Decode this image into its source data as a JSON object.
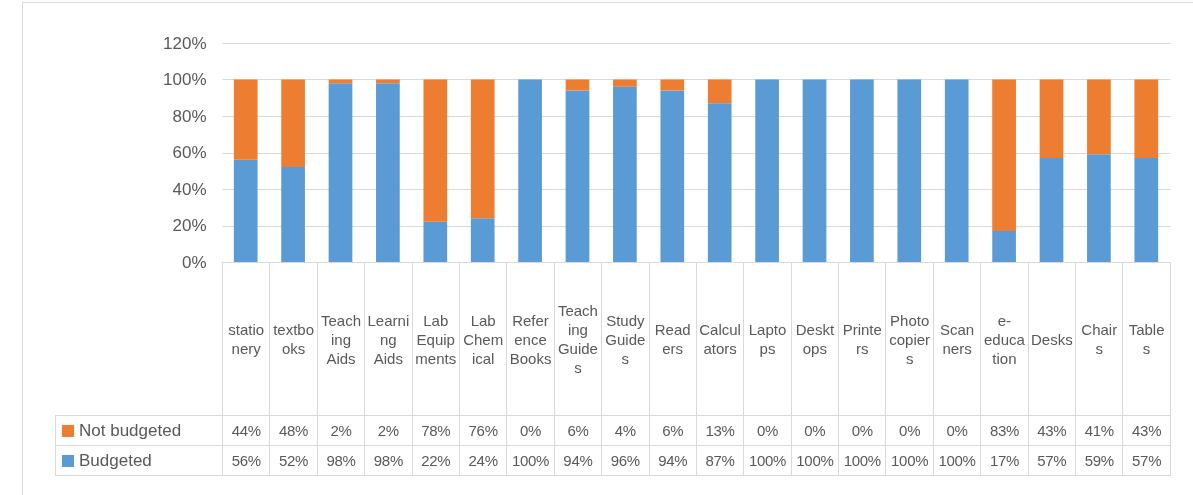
{
  "chart_data": {
    "type": "bar",
    "stacked": true,
    "categories": [
      "stationery",
      "textbooks",
      "Teaching Aids",
      "Learning Aids",
      "Lab Equipments",
      "Lab Chemical",
      "Reference Books",
      "Teaching Guides",
      "Study Guides",
      "Readers",
      "Calculators",
      "Laptops",
      "Desktops",
      "Printers",
      "Photocopiers",
      "Scanners",
      "e-education",
      "Desks",
      "Chairs",
      "Tables"
    ],
    "series": [
      {
        "name": "Budgeted",
        "color": "#5b9bd5",
        "values": [
          56,
          52,
          98,
          98,
          22,
          24,
          100,
          94,
          96,
          94,
          87,
          100,
          100,
          100,
          100,
          100,
          17,
          57,
          59,
          57
        ],
        "value_labels": [
          "56%",
          "52%",
          "98%",
          "98%",
          "22%",
          "24%",
          "100%",
          "94%",
          "96%",
          "94%",
          "87%",
          "100%",
          "100%",
          "100%",
          "100%",
          "100%",
          "17%",
          "57%",
          "59%",
          "57%"
        ]
      },
      {
        "name": "Not budgeted",
        "color": "#ed7d31",
        "values": [
          44,
          48,
          2,
          2,
          78,
          76,
          0,
          6,
          4,
          6,
          13,
          0,
          0,
          0,
          0,
          0,
          83,
          43,
          41,
          43
        ],
        "value_labels": [
          "44%",
          "48%",
          "2%",
          "2%",
          "78%",
          "76%",
          "0%",
          "6%",
          "4%",
          "6%",
          "13%",
          "0%",
          "0%",
          "0%",
          "0%",
          "0%",
          "83%",
          "43%",
          "41%",
          "43%"
        ]
      }
    ],
    "ylim": [
      0,
      120
    ],
    "yticks": [
      {
        "value": 0,
        "label": "0%"
      },
      {
        "value": 20,
        "label": "20%"
      },
      {
        "value": 40,
        "label": "40%"
      },
      {
        "value": 60,
        "label": "60%"
      },
      {
        "value": 80,
        "label": "80%"
      },
      {
        "value": 100,
        "label": "100%"
      },
      {
        "value": 120,
        "label": "120%"
      }
    ],
    "grid": "y",
    "legend": "bottom"
  }
}
